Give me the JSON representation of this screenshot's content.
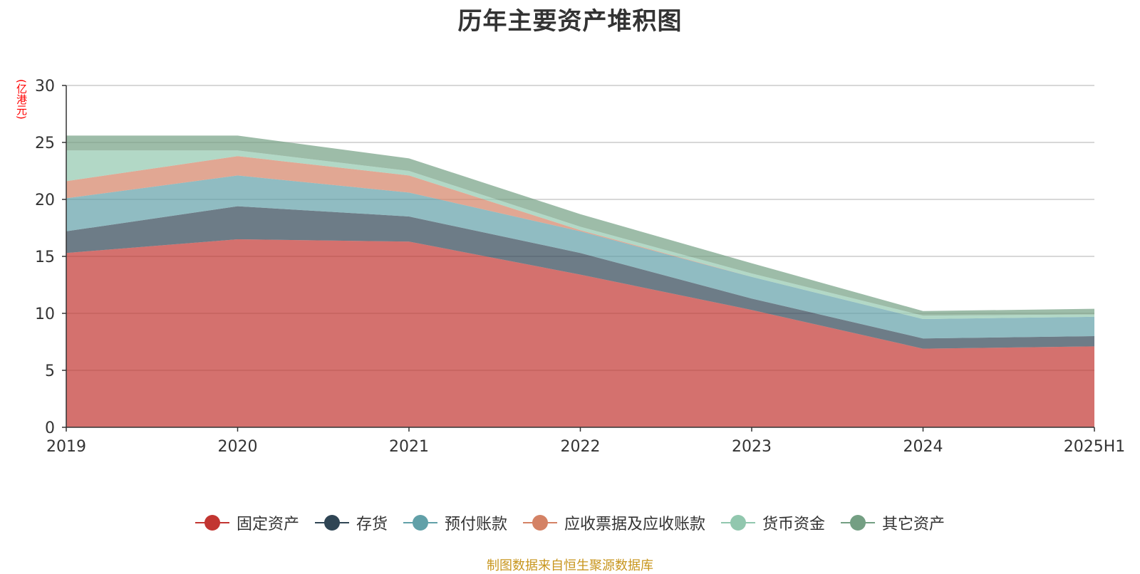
{
  "chart_data": {
    "type": "area",
    "stacked": true,
    "title": "历年主要资产堆积图",
    "ylabel": "(亿港元)",
    "xlabel": "",
    "categories": [
      "2019",
      "2020",
      "2021",
      "2022",
      "2023",
      "2024",
      "2025H1"
    ],
    "ylim": [
      0,
      30
    ],
    "yticks": [
      "0",
      "5",
      "10",
      "15",
      "20",
      "25",
      "30"
    ],
    "grid": true,
    "legend_position": "bottom",
    "series": [
      {
        "name": "固定资产",
        "color": "#c23531",
        "values": [
          15.3,
          16.5,
          16.3,
          13.4,
          10.3,
          6.9,
          7.1
        ]
      },
      {
        "name": "存货",
        "color": "#2f4554",
        "values": [
          1.9,
          2.9,
          2.2,
          1.9,
          1.0,
          0.9,
          0.9
        ]
      },
      {
        "name": "预付账款",
        "color": "#61a0a8",
        "values": [
          2.9,
          2.7,
          2.1,
          1.9,
          1.9,
          1.7,
          1.7
        ]
      },
      {
        "name": "应收票据及应收账款",
        "color": "#d48265",
        "values": [
          1.5,
          1.7,
          1.5,
          0.1,
          0.0,
          0.0,
          0.0
        ]
      },
      {
        "name": "货币资金",
        "color": "#91c7ae",
        "values": [
          2.7,
          0.5,
          0.4,
          0.3,
          0.3,
          0.3,
          0.2
        ]
      },
      {
        "name": "其它资产",
        "color": "#749f83",
        "values": [
          1.3,
          1.3,
          1.1,
          1.1,
          0.9,
          0.4,
          0.5
        ]
      }
    ]
  },
  "unit_color": "#ff0000",
  "source_text": "制图数据来自恒生聚源数据库",
  "source_color": "#c8961e"
}
